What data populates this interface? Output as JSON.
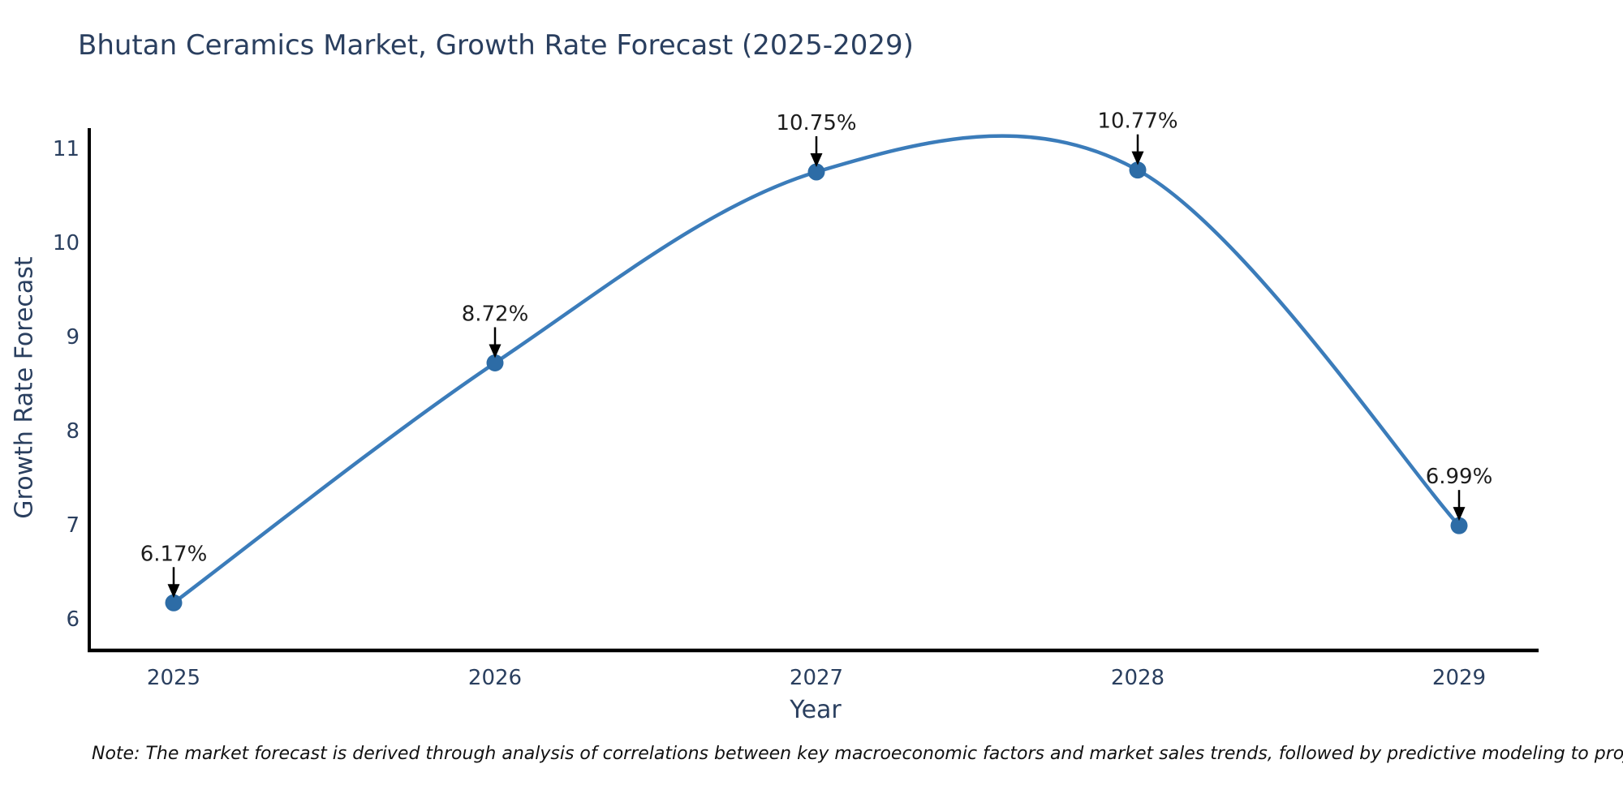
{
  "figure": {
    "title": "Bhutan Ceramics Market, Growth Rate Forecast (2025-2029)",
    "note": "Note: The market forecast is derived through analysis of correlations between key macroeconomic factors and market sales trends, followed by predictive modeling to project future sales"
  },
  "chart_data": {
    "type": "line",
    "line_shape": "spline",
    "title": "Bhutan Ceramics Market, Growth Rate Forecast (2025-2029)",
    "xlabel": "Year",
    "ylabel": "Growth Rate Forecast",
    "x": [
      2025,
      2026,
      2027,
      2028,
      2029
    ],
    "categories": [
      "2025",
      "2026",
      "2027",
      "2028",
      "2029"
    ],
    "values": [
      6.17,
      8.72,
      10.75,
      10.77,
      6.99
    ],
    "point_labels": [
      "6.17%",
      "8.72%",
      "10.75%",
      "10.77%",
      "6.99%"
    ],
    "yticks": [
      6,
      7,
      8,
      9,
      10,
      11
    ],
    "ylim": [
      5.66,
      11.24
    ],
    "xlim": [
      2024.74,
      2029.25
    ],
    "grid": false,
    "legend": false,
    "marker_style": "circle",
    "annotation_arrows": true,
    "colors": {
      "line": "#3b7cba",
      "marker": "#2d6ca6",
      "spine": "#000000",
      "tick_text": "#2a3f5f",
      "title_text": "#2a3f5f",
      "annotation_text": "#1c1c1c",
      "arrow": "#000000",
      "background": "#ffffff"
    }
  }
}
